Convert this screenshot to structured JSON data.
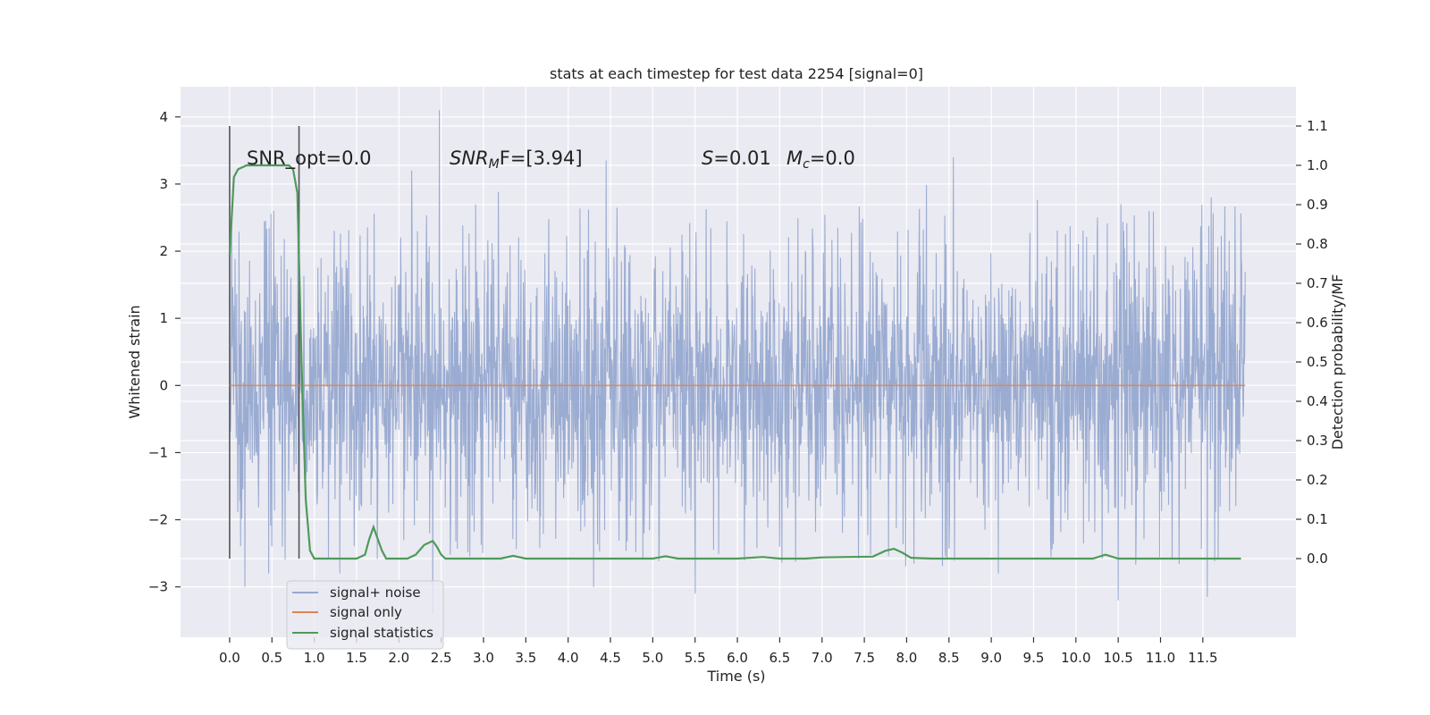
{
  "chart_data": {
    "type": "line",
    "title": "stats at each timestep for test data 2254 [signal=0]",
    "xlabel": "Time (s)",
    "ylabel_left": "Whitened strain",
    "ylabel_right": "Detection probability/MF",
    "xlim": [
      -0.58,
      12.6
    ],
    "ylim_left": [
      -3.75,
      4.45
    ],
    "ylim_right": [
      -0.2,
      1.2
    ],
    "x_ticks": [
      "0.0",
      "0.5",
      "1.0",
      "1.5",
      "2.0",
      "2.5",
      "3.0",
      "3.5",
      "4.0",
      "4.5",
      "5.0",
      "5.5",
      "6.0",
      "6.5",
      "7.0",
      "7.5",
      "8.0",
      "8.5",
      "9.0",
      "9.5",
      "10.0",
      "10.5",
      "11.0",
      "11.5"
    ],
    "y_ticks_left": [
      "4",
      "3",
      "2",
      "1",
      "0",
      "−1",
      "−2",
      "−3"
    ],
    "y_ticks_left_values": [
      4,
      3,
      2,
      1,
      0,
      -1,
      -2,
      -3
    ],
    "y_ticks_right": [
      "1.1",
      "1.0",
      "0.9",
      "0.8",
      "0.7",
      "0.6",
      "0.5",
      "0.4",
      "0.3",
      "0.2",
      "0.1",
      "0.0"
    ],
    "y_ticks_right_values": [
      1.1,
      1.0,
      0.9,
      0.8,
      0.7,
      0.6,
      0.5,
      0.4,
      0.3,
      0.2,
      0.1,
      0.0
    ],
    "grid": true,
    "legend_position": "lower-left",
    "annotations": {
      "snr_opt": "SNR_opt=0.0",
      "snr_mf_main": "SNR",
      "snr_mf_sub": "M",
      "snr_mf_rest": "F=[3.94]",
      "s_label": "S",
      "s_value": "=0.01",
      "mc_label": "M",
      "mc_sub": "c",
      "mc_value": "=0.0"
    },
    "window_markers_x": [
      0.0,
      0.82
    ],
    "series": [
      {
        "name": "signal+ noise",
        "color": "#97a9d0",
        "time_range": [
          0.0,
          12.0
        ],
        "envelope": {
          "max_abs_typical": 1.5,
          "spike_max": 4.1,
          "spike_min": -3.2
        },
        "notable_peaks": [
          {
            "x": 2.48,
            "y": 4.1
          },
          {
            "x": 8.55,
            "y": 3.4
          },
          {
            "x": 4.45,
            "y": 3.35
          },
          {
            "x": 2.15,
            "y": 3.2
          },
          {
            "x": 0.52,
            "y": 2.6
          },
          {
            "x": 11.6,
            "y": 2.8
          }
        ],
        "notable_troughs": [
          {
            "x": 0.18,
            "y": -3.0
          },
          {
            "x": 10.5,
            "y": -3.2
          },
          {
            "x": 11.55,
            "y": -3.15
          },
          {
            "x": 5.5,
            "y": -3.1
          },
          {
            "x": 4.3,
            "y": -3.0
          },
          {
            "x": 2.4,
            "y": -3.4
          }
        ]
      },
      {
        "name": "signal only",
        "color": "#dd8452",
        "x": [
          0.0,
          12.0
        ],
        "y": [
          0.0,
          0.0
        ]
      },
      {
        "name": "signal statistics",
        "color": "#4f9a5a",
        "x": [
          0.0,
          0.05,
          0.1,
          0.2,
          0.3,
          0.4,
          0.5,
          0.6,
          0.7,
          0.75,
          0.8,
          0.85,
          0.9,
          0.95,
          1.0,
          1.1,
          1.3,
          1.5,
          1.6,
          1.65,
          1.7,
          1.75,
          1.8,
          1.85,
          1.9,
          2.0,
          2.1,
          2.2,
          2.3,
          2.4,
          2.45,
          2.5,
          2.55,
          2.6,
          2.8,
          3.0,
          3.2,
          3.35,
          3.5,
          3.8,
          4.2,
          4.5,
          4.8,
          5.0,
          5.15,
          5.3,
          5.6,
          6.0,
          6.3,
          6.5,
          6.8,
          7.0,
          7.3,
          7.6,
          7.75,
          7.85,
          7.95,
          8.05,
          8.3,
          8.6,
          9.0,
          9.4,
          9.8,
          10.2,
          10.35,
          10.5,
          10.8,
          11.2,
          11.6,
          11.95
        ],
        "y": [
          0.77,
          0.97,
          0.99,
          1.0,
          1.0,
          1.0,
          1.0,
          1.0,
          1.0,
          0.99,
          0.93,
          0.5,
          0.15,
          0.02,
          0.0,
          0.0,
          0.0,
          0.0,
          0.01,
          0.05,
          0.08,
          0.05,
          0.02,
          0.0,
          0.0,
          0.0,
          0.0,
          0.01,
          0.035,
          0.045,
          0.03,
          0.01,
          0.0,
          0.0,
          0.0,
          0.0,
          0.0,
          0.007,
          0.0,
          0.0,
          0.0,
          0.0,
          0.0,
          0.0,
          0.006,
          0.0,
          0.0,
          0.0,
          0.004,
          0.0,
          0.0,
          0.003,
          0.004,
          0.005,
          0.02,
          0.025,
          0.015,
          0.002,
          0.0,
          0.0,
          0.0,
          0.0,
          0.0,
          0.0,
          0.01,
          0.0,
          0.0,
          0.0,
          0.0,
          0.0
        ]
      }
    ]
  }
}
